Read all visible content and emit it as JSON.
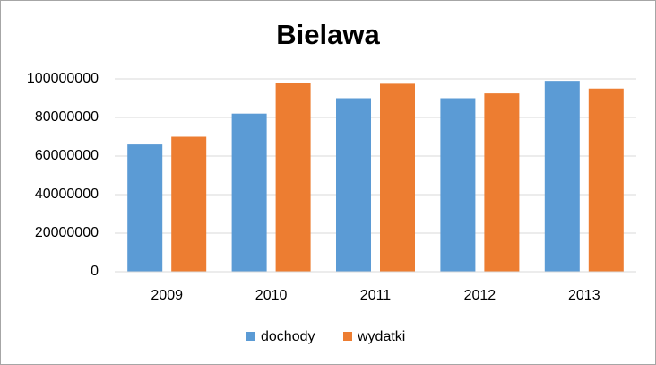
{
  "chart_data": {
    "type": "bar",
    "title": "Bielawa",
    "categories": [
      "2009",
      "2010",
      "2011",
      "2012",
      "2013"
    ],
    "series": [
      {
        "name": "dochody",
        "color": "#5b9bd5",
        "values": [
          66000000,
          82000000,
          90000000,
          90000000,
          99000000
        ]
      },
      {
        "name": "wydatki",
        "color": "#ed7d31",
        "values": [
          70000000,
          98000000,
          97500000,
          92500000,
          95000000
        ]
      }
    ],
    "ylim": [
      0,
      100000000
    ],
    "yticks": [
      0,
      20000000,
      40000000,
      60000000,
      80000000,
      100000000
    ],
    "grid": true,
    "legend": "bottom"
  }
}
